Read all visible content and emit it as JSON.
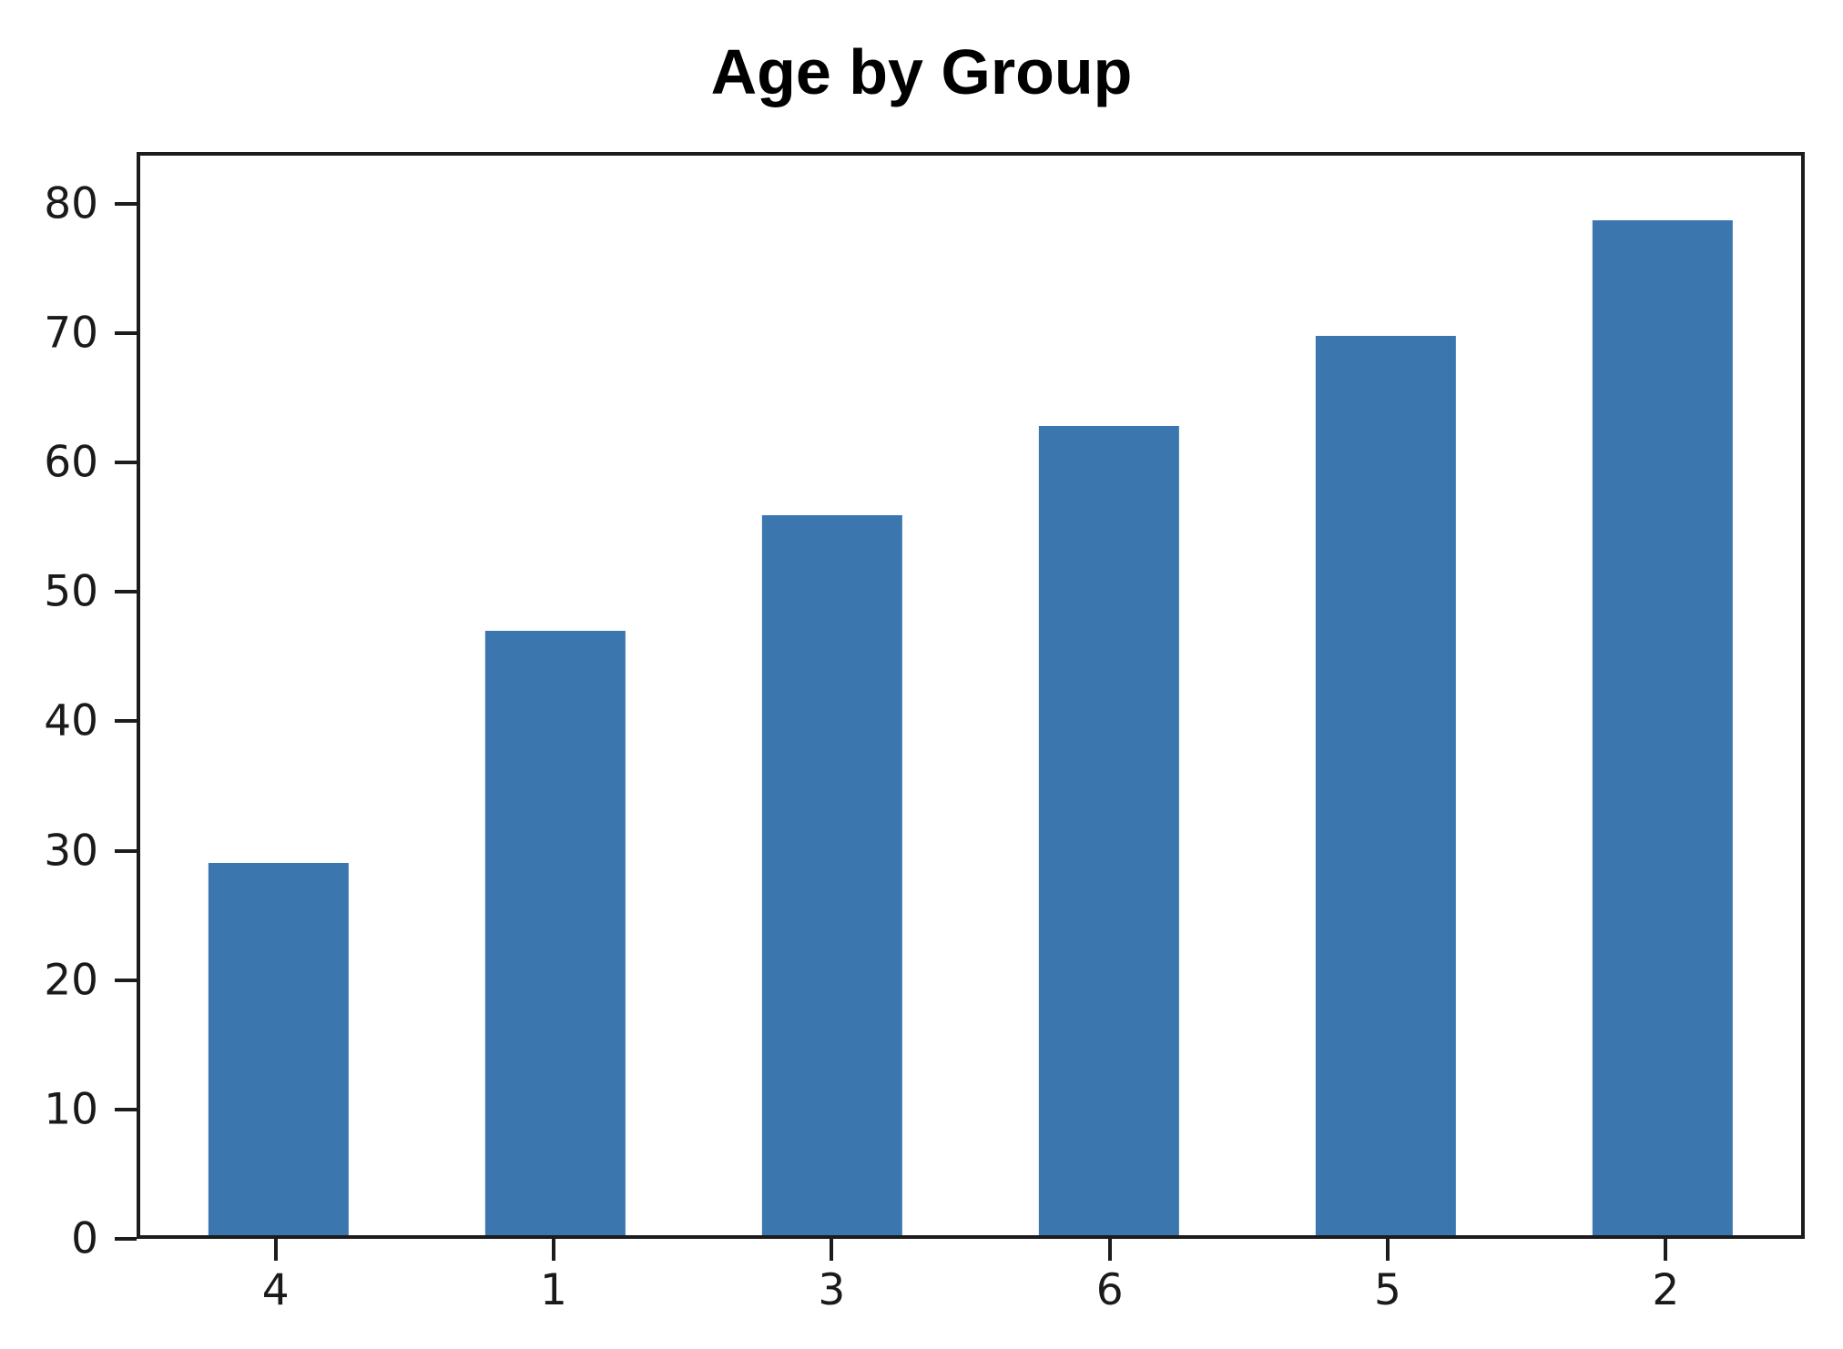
{
  "chart_data": {
    "type": "bar",
    "title": "Age by Group",
    "categories": [
      "4",
      "1",
      "3",
      "6",
      "5",
      "2"
    ],
    "values": [
      29,
      47,
      56,
      63,
      70,
      79
    ],
    "xlabel": "",
    "ylabel": "",
    "ylim": [
      0,
      84
    ],
    "yticks": [
      0,
      10,
      20,
      30,
      40,
      50,
      60,
      70,
      80
    ],
    "bar_color": "#3b76af",
    "axis_color": "#1c1c1c",
    "grid": false,
    "legend_position": "none"
  }
}
